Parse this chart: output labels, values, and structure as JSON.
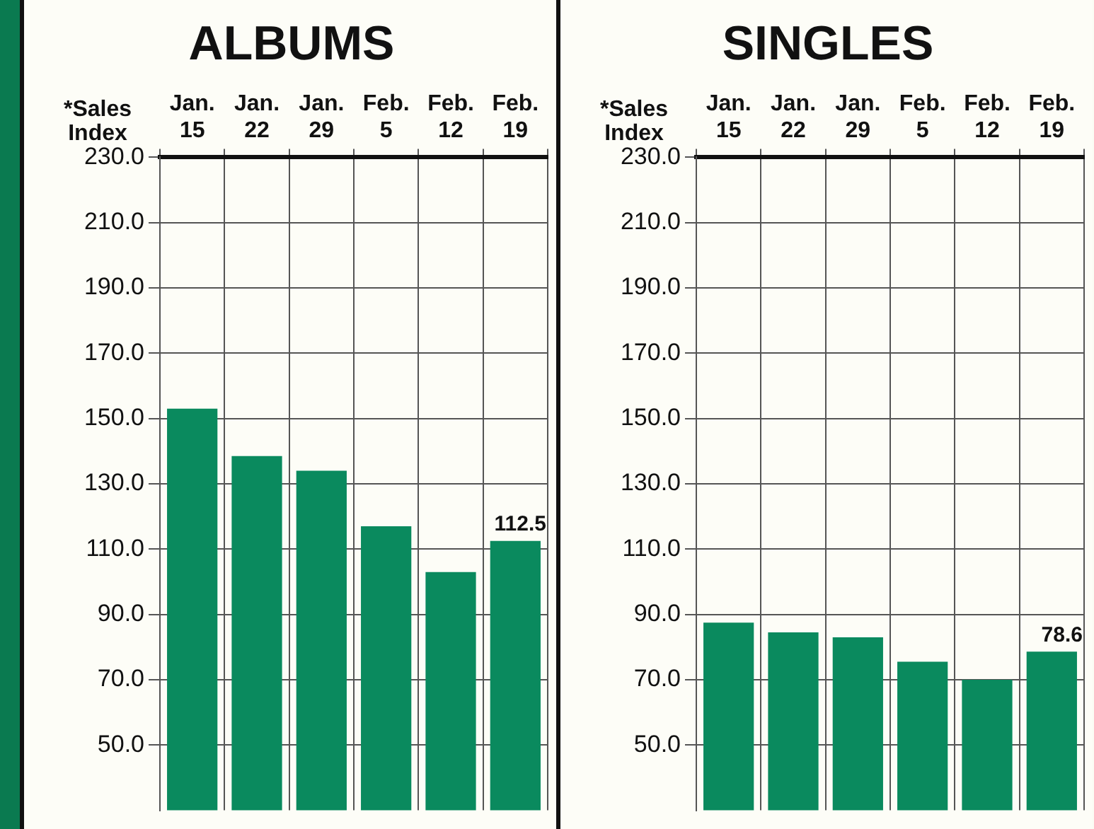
{
  "chart_data": [
    {
      "type": "bar",
      "title": "ALBUMS",
      "ylabel": "*Sales Index",
      "categories": [
        "Jan. 15",
        "Jan. 22",
        "Jan. 29",
        "Feb. 5",
        "Feb. 12",
        "Feb. 19"
      ],
      "values": [
        153,
        138.5,
        134,
        117,
        103,
        112.5
      ],
      "color": "#0a8a5e",
      "value_labels": [
        null,
        null,
        null,
        null,
        null,
        "112.5"
      ],
      "ylim": [
        30,
        230
      ],
      "yticks": [
        {
          "value": 50,
          "label": "50.0"
        },
        {
          "value": 70,
          "label": "70.0"
        },
        {
          "value": 90,
          "label": "90.0"
        },
        {
          "value": 110,
          "label": "110.0"
        },
        {
          "value": 130,
          "label": "130.0"
        },
        {
          "value": 150,
          "label": "150.0"
        },
        {
          "value": 170,
          "label": "170.0"
        },
        {
          "value": 190,
          "label": "190.0"
        },
        {
          "value": 210,
          "label": "210.0"
        },
        {
          "value": 230,
          "label": "230.0"
        }
      ],
      "grid": true
    },
    {
      "type": "bar",
      "title": "SINGLES",
      "ylabel": "*Sales Index",
      "categories": [
        "Jan. 15",
        "Jan. 22",
        "Jan. 29",
        "Feb. 5",
        "Feb. 12",
        "Feb. 19"
      ],
      "values": [
        87.5,
        84.5,
        83,
        75.5,
        70,
        78.6
      ],
      "color": "#0a8a5e",
      "value_labels": [
        null,
        null,
        null,
        null,
        null,
        "78.6"
      ],
      "ylim": [
        30,
        230
      ],
      "yticks": [
        {
          "value": 50,
          "label": "50.0"
        },
        {
          "value": 70,
          "label": "70.0"
        },
        {
          "value": 90,
          "label": "90.0"
        },
        {
          "value": 110,
          "label": "110.0"
        },
        {
          "value": 130,
          "label": "130.0"
        },
        {
          "value": 150,
          "label": "150.0"
        },
        {
          "value": 170,
          "label": "170.0"
        },
        {
          "value": 190,
          "label": "190.0"
        },
        {
          "value": 210,
          "label": "210.0"
        },
        {
          "value": 230,
          "label": "230.0"
        }
      ],
      "grid": true
    }
  ]
}
